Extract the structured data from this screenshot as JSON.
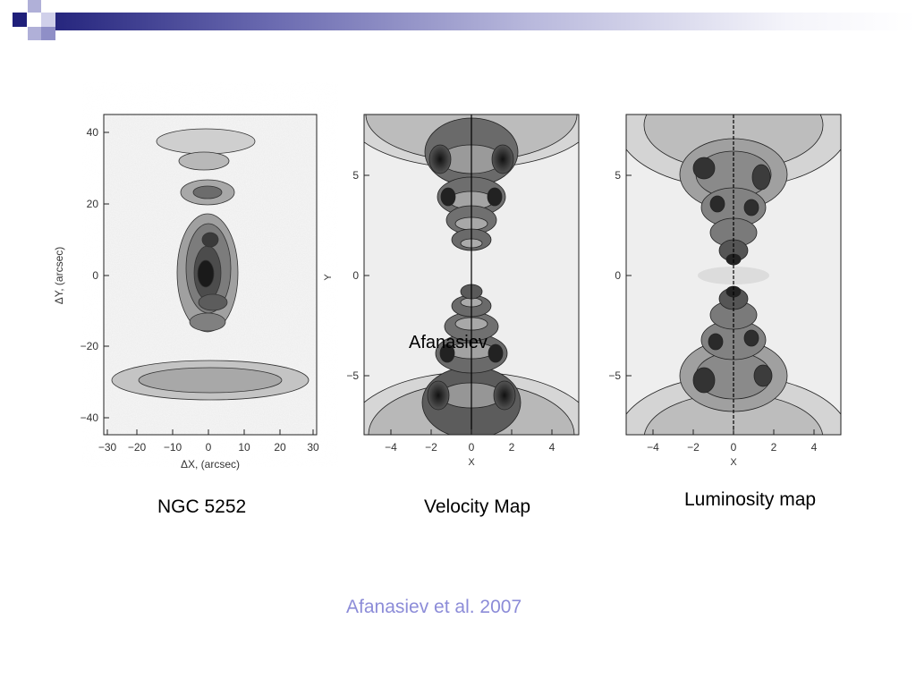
{
  "colors": {
    "header_dark": "#1f1f7a",
    "header_mid": "#8f8fc7",
    "credit_text": "#8c8cd8",
    "contour_line": "#222222"
  },
  "panels": [
    {
      "id": "ngc5252",
      "caption": "NGC 5252",
      "x_axis_label": "ΔX, (arcsec)",
      "y_axis_label": "ΔY, (arcsec)",
      "x_ticks": [
        "−30",
        "−20",
        "−10",
        "0",
        "10",
        "20",
        "30"
      ],
      "y_ticks": [
        "40",
        "20",
        "0",
        "−20",
        "−40"
      ]
    },
    {
      "id": "velocity",
      "caption": "Velocity  Map",
      "x_axis_label": "X",
      "y_axis_label": "Y",
      "x_ticks": [
        "−4",
        "−2",
        "0",
        "2",
        "4"
      ],
      "y_ticks": [
        "5",
        "0",
        "−5"
      ]
    },
    {
      "id": "luminosity",
      "caption": "Luminosity map",
      "x_axis_label": "X",
      "x_ticks": [
        "−4",
        "−2",
        "0",
        "2",
        "4"
      ],
      "y_ticks": [
        "5",
        "0",
        "−5"
      ]
    }
  ],
  "overlay_text": "Afanasiev",
  "credit": "Afanasiev et al. 2007"
}
